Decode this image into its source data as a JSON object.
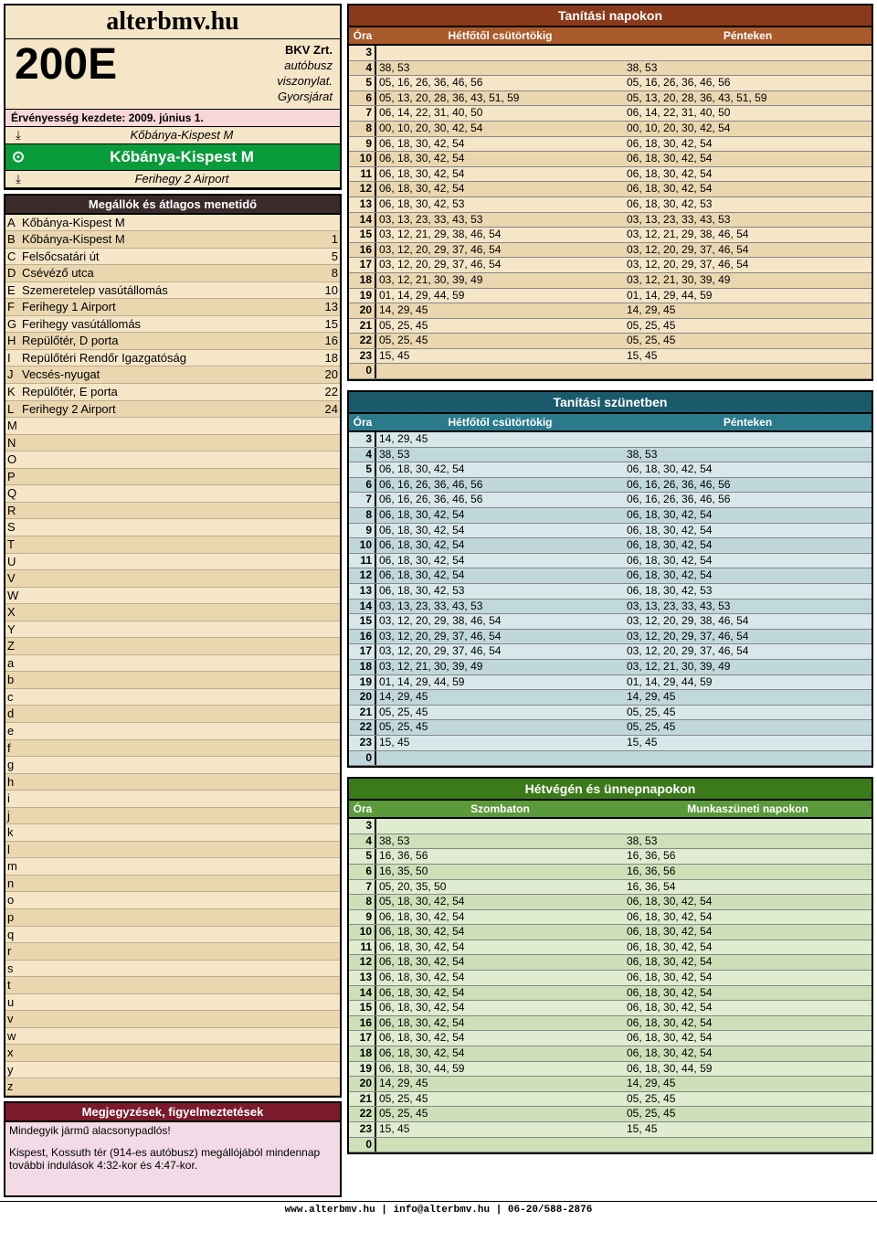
{
  "site_title": "alterbmv.hu",
  "route_number": "200E",
  "operator": "BKV Zrt.",
  "service_type1": "autóbusz",
  "service_type2": "viszonylat.",
  "service_type3": "Gyorsjárat",
  "validity": "Érvényesség kezdete:  2009. június 1.",
  "terminal_from": "Kőbánya-Kispest M",
  "current_stop": "Kőbánya-Kispest M",
  "terminal_to": "Ferihegy 2 Airport",
  "stops_header": "Megállók és átlagos menetidő",
  "stops": [
    {
      "l": "A",
      "name": "Kőbánya-Kispest M",
      "t": ""
    },
    {
      "l": "B",
      "name": "Kőbánya-Kispest M",
      "t": "1"
    },
    {
      "l": "C",
      "name": "Felsőcsatári út",
      "t": "5"
    },
    {
      "l": "D",
      "name": "Csévéző utca",
      "t": "8"
    },
    {
      "l": "E",
      "name": "Szemeretelep vasútállomás",
      "t": "10"
    },
    {
      "l": "F",
      "name": "Ferihegy 1 Airport",
      "t": "13"
    },
    {
      "l": "G",
      "name": "Ferihegy vasútállomás",
      "t": "15"
    },
    {
      "l": "H",
      "name": "Repülőtér, D porta",
      "t": "16"
    },
    {
      "l": "I",
      "name": "Repülőtéri Rendőr Igazgatóság",
      "t": "18"
    },
    {
      "l": "J",
      "name": "Vecsés-nyugat",
      "t": "20"
    },
    {
      "l": "K",
      "name": "Repülőtér, E porta",
      "t": "22"
    },
    {
      "l": "L",
      "name": "Ferihegy 2 Airport",
      "t": "24"
    },
    {
      "l": "M",
      "name": "",
      "t": ""
    },
    {
      "l": "N",
      "name": "",
      "t": ""
    },
    {
      "l": "O",
      "name": "",
      "t": ""
    },
    {
      "l": "P",
      "name": "",
      "t": ""
    },
    {
      "l": "Q",
      "name": "",
      "t": ""
    },
    {
      "l": "R",
      "name": "",
      "t": ""
    },
    {
      "l": "S",
      "name": "",
      "t": ""
    },
    {
      "l": "T",
      "name": "",
      "t": ""
    },
    {
      "l": "U",
      "name": "",
      "t": ""
    },
    {
      "l": "V",
      "name": "",
      "t": ""
    },
    {
      "l": "W",
      "name": "",
      "t": ""
    },
    {
      "l": "X",
      "name": "",
      "t": ""
    },
    {
      "l": "Y",
      "name": "",
      "t": ""
    },
    {
      "l": "Z",
      "name": "",
      "t": ""
    },
    {
      "l": "a",
      "name": "",
      "t": ""
    },
    {
      "l": "b",
      "name": "",
      "t": ""
    },
    {
      "l": "c",
      "name": "",
      "t": ""
    },
    {
      "l": "d",
      "name": "",
      "t": ""
    },
    {
      "l": "e",
      "name": "",
      "t": ""
    },
    {
      "l": "f",
      "name": "",
      "t": ""
    },
    {
      "l": "g",
      "name": "",
      "t": ""
    },
    {
      "l": "h",
      "name": "",
      "t": ""
    },
    {
      "l": "i",
      "name": "",
      "t": ""
    },
    {
      "l": "j",
      "name": "",
      "t": ""
    },
    {
      "l": "k",
      "name": "",
      "t": ""
    },
    {
      "l": "l",
      "name": "",
      "t": ""
    },
    {
      "l": "m",
      "name": "",
      "t": ""
    },
    {
      "l": "n",
      "name": "",
      "t": ""
    },
    {
      "l": "o",
      "name": "",
      "t": ""
    },
    {
      "l": "p",
      "name": "",
      "t": ""
    },
    {
      "l": "q",
      "name": "",
      "t": ""
    },
    {
      "l": "r",
      "name": "",
      "t": ""
    },
    {
      "l": "s",
      "name": "",
      "t": ""
    },
    {
      "l": "t",
      "name": "",
      "t": ""
    },
    {
      "l": "u",
      "name": "",
      "t": ""
    },
    {
      "l": "v",
      "name": "",
      "t": ""
    },
    {
      "l": "w",
      "name": "",
      "t": ""
    },
    {
      "l": "x",
      "name": "",
      "t": ""
    },
    {
      "l": "y",
      "name": "",
      "t": ""
    },
    {
      "l": "z",
      "name": "",
      "t": ""
    }
  ],
  "notes_header": "Megjegyzések, figyelmeztetések",
  "notes": [
    "Mindegyik jármű alacsonypadlós!",
    "Kispest, Kossuth tér (914-es autóbusz) megállójából mindennap további indulások 4:32-kor és 4:47-kor."
  ],
  "tables": [
    {
      "title": "Tanítási napokon",
      "title_bg": "#8a3a1a",
      "head_bg": "#a85a2a",
      "col1": "Hétfőtől csütörtökig",
      "col2": "Pénteken",
      "hour_label": "Óra",
      "row_colors": [
        "#f5e6c8",
        "#ead7b0"
      ],
      "rows": [
        {
          "h": "3",
          "a": "",
          "b": ""
        },
        {
          "h": "4",
          "a": "38, 53",
          "b": "38, 53"
        },
        {
          "h": "5",
          "a": "05, 16, 26, 36, 46, 56",
          "b": "05, 16, 26, 36, 46, 56"
        },
        {
          "h": "6",
          "a": "05, 13, 20, 28, 36, 43, 51, 59",
          "b": "05, 13, 20, 28, 36, 43, 51, 59"
        },
        {
          "h": "7",
          "a": "06, 14, 22, 31, 40, 50",
          "b": "06, 14, 22, 31, 40, 50"
        },
        {
          "h": "8",
          "a": "00, 10, 20, 30, 42, 54",
          "b": "00, 10, 20, 30, 42, 54"
        },
        {
          "h": "9",
          "a": "06, 18, 30, 42, 54",
          "b": "06, 18, 30, 42, 54"
        },
        {
          "h": "10",
          "a": "06, 18, 30, 42, 54",
          "b": "06, 18, 30, 42, 54"
        },
        {
          "h": "11",
          "a": "06, 18, 30, 42, 54",
          "b": "06, 18, 30, 42, 54"
        },
        {
          "h": "12",
          "a": "06, 18, 30, 42, 54",
          "b": "06, 18, 30, 42, 54"
        },
        {
          "h": "13",
          "a": "06, 18, 30, 42, 53",
          "b": "06, 18, 30, 42, 53"
        },
        {
          "h": "14",
          "a": "03, 13, 23, 33, 43, 53",
          "b": "03, 13, 23, 33, 43, 53"
        },
        {
          "h": "15",
          "a": "03, 12, 21, 29, 38, 46, 54",
          "b": "03, 12, 21, 29, 38, 46, 54"
        },
        {
          "h": "16",
          "a": "03, 12, 20, 29, 37, 46, 54",
          "b": "03, 12, 20, 29, 37, 46, 54"
        },
        {
          "h": "17",
          "a": "03, 12, 20, 29, 37, 46, 54",
          "b": "03, 12, 20, 29, 37, 46, 54"
        },
        {
          "h": "18",
          "a": "03, 12, 21, 30, 39, 49",
          "b": "03, 12, 21, 30, 39, 49"
        },
        {
          "h": "19",
          "a": "01, 14, 29, 44, 59",
          "b": "01, 14, 29, 44, 59"
        },
        {
          "h": "20",
          "a": "14, 29, 45",
          "b": "14, 29, 45"
        },
        {
          "h": "21",
          "a": "05, 25, 45",
          "b": "05, 25, 45"
        },
        {
          "h": "22",
          "a": "05, 25, 45",
          "b": "05, 25, 45"
        },
        {
          "h": "23",
          "a": "15, 45",
          "b": "15, 45"
        },
        {
          "h": "0",
          "a": "",
          "b": ""
        }
      ]
    },
    {
      "title": "Tanítási szünetben",
      "title_bg": "#1a5a6a",
      "head_bg": "#2a7a8a",
      "col1": "Hétfőtől csütörtökig",
      "col2": "Pénteken",
      "hour_label": "Óra",
      "row_colors": [
        "#d8e8ea",
        "#c0d8dc"
      ],
      "rows": [
        {
          "h": "3",
          "a": "14, 29, 45",
          "b": ""
        },
        {
          "h": "4",
          "a": "38, 53",
          "b": "38, 53"
        },
        {
          "h": "5",
          "a": "06, 18, 30, 42, 54",
          "b": "06, 18, 30, 42, 54"
        },
        {
          "h": "6",
          "a": "06, 16, 26, 36, 46, 56",
          "b": "06, 16, 26, 36, 46, 56"
        },
        {
          "h": "7",
          "a": "06, 16, 26, 36, 46, 56",
          "b": "06, 16, 26, 36, 46, 56"
        },
        {
          "h": "8",
          "a": "06, 18, 30, 42, 54",
          "b": "06, 18, 30, 42, 54"
        },
        {
          "h": "9",
          "a": "06, 18, 30, 42, 54",
          "b": "06, 18, 30, 42, 54"
        },
        {
          "h": "10",
          "a": "06, 18, 30, 42, 54",
          "b": "06, 18, 30, 42, 54"
        },
        {
          "h": "11",
          "a": "06, 18, 30, 42, 54",
          "b": "06, 18, 30, 42, 54"
        },
        {
          "h": "12",
          "a": "06, 18, 30, 42, 54",
          "b": "06, 18, 30, 42, 54"
        },
        {
          "h": "13",
          "a": "06, 18, 30, 42, 53",
          "b": "06, 18, 30, 42, 53"
        },
        {
          "h": "14",
          "a": "03, 13, 23, 33, 43, 53",
          "b": "03, 13, 23, 33, 43, 53"
        },
        {
          "h": "15",
          "a": "03, 12, 20, 29, 38, 46, 54",
          "b": "03, 12, 20, 29, 38, 46, 54"
        },
        {
          "h": "16",
          "a": "03, 12, 20, 29, 37, 46, 54",
          "b": "03, 12, 20, 29, 37, 46, 54"
        },
        {
          "h": "17",
          "a": "03, 12, 20, 29, 37, 46, 54",
          "b": "03, 12, 20, 29, 37, 46, 54"
        },
        {
          "h": "18",
          "a": "03, 12, 21, 30, 39, 49",
          "b": "03, 12, 21, 30, 39, 49"
        },
        {
          "h": "19",
          "a": "01, 14, 29, 44, 59",
          "b": "01, 14, 29, 44, 59"
        },
        {
          "h": "20",
          "a": "14, 29, 45",
          "b": "14, 29, 45"
        },
        {
          "h": "21",
          "a": "05, 25, 45",
          "b": "05, 25, 45"
        },
        {
          "h": "22",
          "a": "05, 25, 45",
          "b": "05, 25, 45"
        },
        {
          "h": "23",
          "a": "15, 45",
          "b": "15, 45"
        },
        {
          "h": "0",
          "a": "",
          "b": ""
        }
      ]
    },
    {
      "title": "Hétvégén és ünnepnapokon",
      "title_bg": "#3a7a1a",
      "head_bg": "#5a9a3a",
      "col1": "Szombaton",
      "col2": "Munkaszüneti napokon",
      "hour_label": "Óra",
      "row_colors": [
        "#e0ecd0",
        "#cde0b8"
      ],
      "rows": [
        {
          "h": "3",
          "a": "",
          "b": ""
        },
        {
          "h": "4",
          "a": "38, 53",
          "b": "38, 53"
        },
        {
          "h": "5",
          "a": "16, 36, 56",
          "b": "16, 36, 56"
        },
        {
          "h": "6",
          "a": "16, 35, 50",
          "b": "16, 36, 56"
        },
        {
          "h": "7",
          "a": "05, 20, 35, 50",
          "b": "16, 36, 54"
        },
        {
          "h": "8",
          "a": "05, 18, 30, 42, 54",
          "b": "06, 18, 30, 42, 54"
        },
        {
          "h": "9",
          "a": "06, 18, 30, 42, 54",
          "b": "06, 18, 30, 42, 54"
        },
        {
          "h": "10",
          "a": "06, 18, 30, 42, 54",
          "b": "06, 18, 30, 42, 54"
        },
        {
          "h": "11",
          "a": "06, 18, 30, 42, 54",
          "b": "06, 18, 30, 42, 54"
        },
        {
          "h": "12",
          "a": "06, 18, 30, 42, 54",
          "b": "06, 18, 30, 42, 54"
        },
        {
          "h": "13",
          "a": "06, 18, 30, 42, 54",
          "b": "06, 18, 30, 42, 54"
        },
        {
          "h": "14",
          "a": "06, 18, 30, 42, 54",
          "b": "06, 18, 30, 42, 54"
        },
        {
          "h": "15",
          "a": "06, 18, 30, 42, 54",
          "b": "06, 18, 30, 42, 54"
        },
        {
          "h": "16",
          "a": "06, 18, 30, 42, 54",
          "b": "06, 18, 30, 42, 54"
        },
        {
          "h": "17",
          "a": "06, 18, 30, 42, 54",
          "b": "06, 18, 30, 42, 54"
        },
        {
          "h": "18",
          "a": "06, 18, 30, 42, 54",
          "b": "06, 18, 30, 42, 54"
        },
        {
          "h": "19",
          "a": "06, 18, 30, 44, 59",
          "b": "06, 18, 30, 44, 59"
        },
        {
          "h": "20",
          "a": "14, 29, 45",
          "b": "14, 29, 45"
        },
        {
          "h": "21",
          "a": "05, 25, 45",
          "b": "05, 25, 45"
        },
        {
          "h": "22",
          "a": "05, 25, 45",
          "b": "05, 25, 45"
        },
        {
          "h": "23",
          "a": "15, 45",
          "b": "15, 45"
        },
        {
          "h": "0",
          "a": "",
          "b": ""
        }
      ]
    }
  ],
  "footer": "www.alterbmv.hu   |   info@alterbmv.hu   |   06-20/588-2876"
}
